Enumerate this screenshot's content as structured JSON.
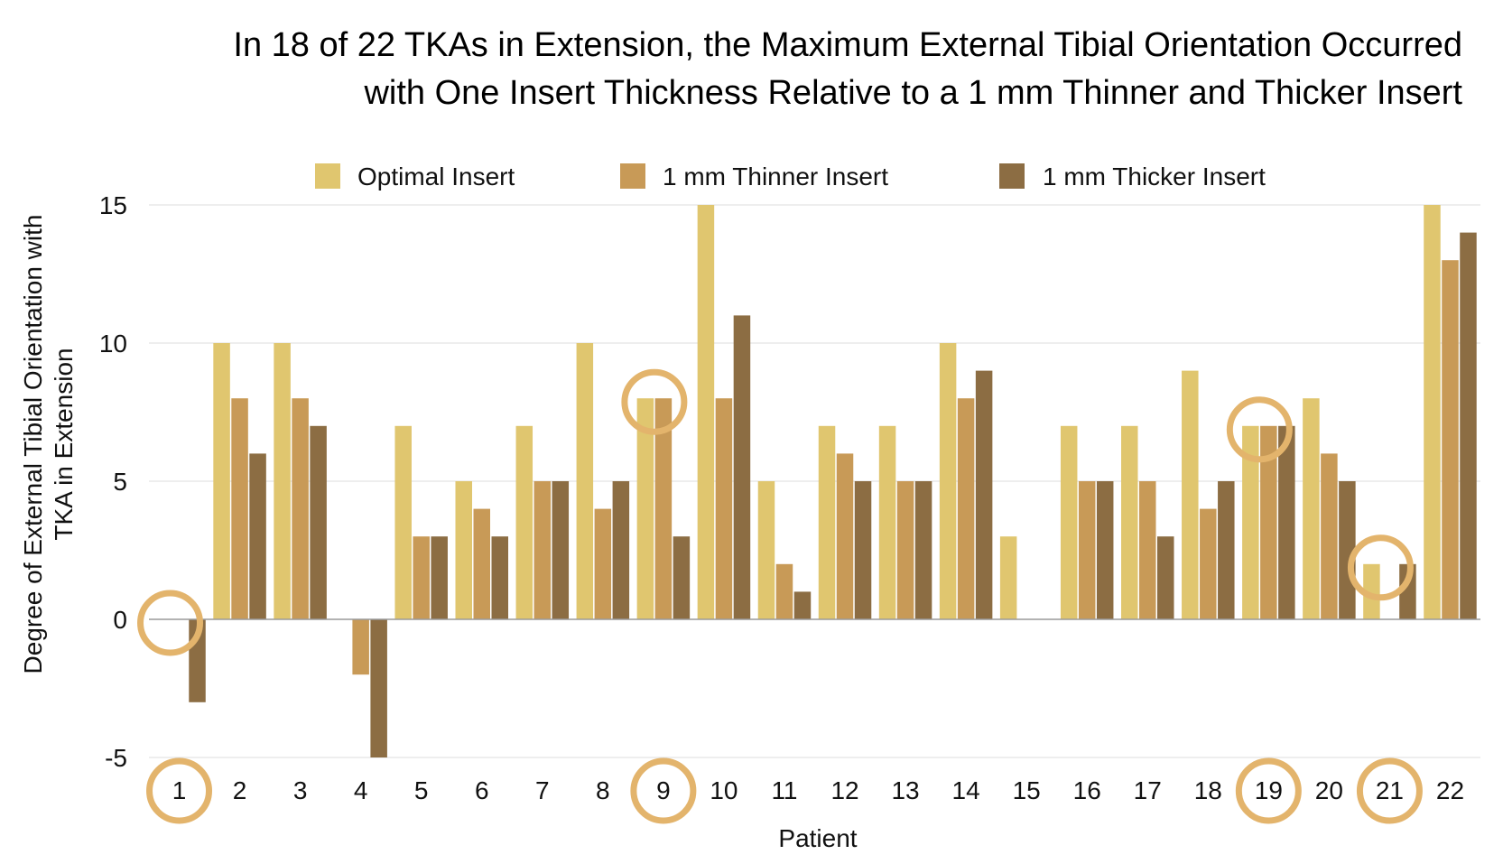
{
  "chart_data": {
    "type": "bar",
    "title_lines": [
      "In 18 of 22 TKAs in Extension, the Maximum External Tibial Orientation Occurred",
      "with One Insert Thickness Relative to a 1 mm Thinner and Thicker Insert"
    ],
    "xlabel": "Patient",
    "ylabel_lines": [
      "Degree of External Tibial Orientation with",
      "TKA in Extension"
    ],
    "ylim": [
      -5,
      15
    ],
    "yticks": [
      -5,
      0,
      5,
      10,
      15
    ],
    "grid": true,
    "legend_position": "top",
    "categories": [
      "1",
      "2",
      "3",
      "4",
      "5",
      "6",
      "7",
      "8",
      "9",
      "10",
      "11",
      "12",
      "13",
      "14",
      "15",
      "16",
      "17",
      "18",
      "19",
      "20",
      "21",
      "22"
    ],
    "series": [
      {
        "name": "Optimal Insert",
        "color": "#E0C66F",
        "values": [
          0,
          10,
          10,
          0,
          7,
          5,
          7,
          10,
          8,
          15,
          5,
          7,
          7,
          10,
          3,
          7,
          7,
          9,
          7,
          8,
          2,
          15
        ]
      },
      {
        "name": "1 mm Thinner Insert",
        "color": "#C89A57",
        "values": [
          0,
          8,
          8,
          -2,
          3,
          4,
          5,
          4,
          8,
          8,
          2,
          6,
          5,
          8,
          0,
          5,
          5,
          4,
          7,
          6,
          0,
          13
        ]
      },
      {
        "name": "1 mm Thicker Insert",
        "color": "#8C6D43",
        "values": [
          -3,
          6,
          7,
          -5,
          3,
          3,
          5,
          5,
          3,
          11,
          1,
          5,
          5,
          9,
          0,
          5,
          3,
          5,
          7,
          5,
          2,
          14
        ]
      }
    ],
    "highlighted_patients": [
      "1",
      "9",
      "19",
      "21"
    ],
    "highlight_color": "#E3B46C"
  }
}
